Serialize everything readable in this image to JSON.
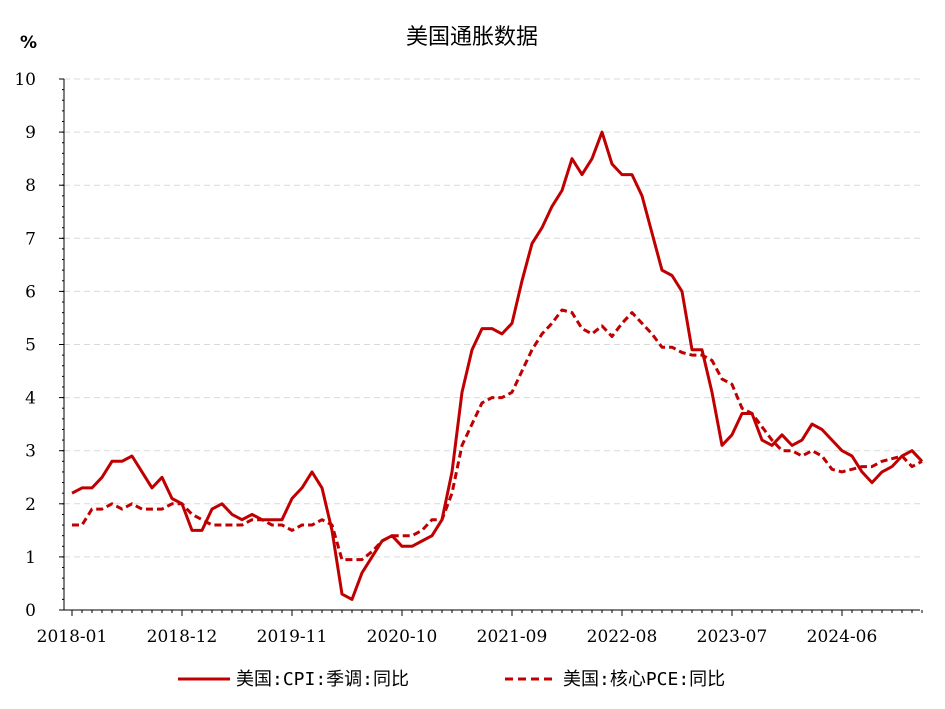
{
  "chart_data": {
    "type": "line",
    "title": "美国通胀数据",
    "ylabel": "%",
    "xlabel": "",
    "ylim": [
      0,
      10
    ],
    "yticks": [
      "0",
      "1",
      "2",
      "3",
      "4",
      "5",
      "6",
      "7",
      "8",
      "9",
      "10"
    ],
    "xticks": [
      "2018-01",
      "2018-12",
      "2019-11",
      "2020-10",
      "2021-09",
      "2022-08",
      "2023-07",
      "2024-06"
    ],
    "x_start": "2018-01",
    "grid": true,
    "legend_position": "bottom",
    "colors": {
      "series": "#c00000"
    },
    "series": [
      {
        "name": "美国:CPI:季调:同比",
        "style": "solid",
        "values": [
          2.2,
          2.3,
          2.3,
          2.5,
          2.8,
          2.8,
          2.9,
          2.6,
          2.3,
          2.5,
          2.1,
          2.0,
          1.5,
          1.5,
          1.9,
          2.0,
          1.8,
          1.7,
          1.8,
          1.7,
          1.7,
          1.7,
          2.1,
          2.3,
          2.6,
          2.3,
          1.5,
          0.3,
          0.2,
          0.7,
          1.0,
          1.3,
          1.4,
          1.2,
          1.2,
          1.3,
          1.4,
          1.7,
          2.6,
          4.1,
          4.9,
          5.3,
          5.3,
          5.2,
          5.4,
          6.2,
          6.9,
          7.2,
          7.6,
          7.9,
          8.5,
          8.2,
          8.5,
          9.0,
          8.4,
          8.2,
          8.2,
          7.8,
          7.1,
          6.4,
          6.3,
          6.0,
          4.9,
          4.9,
          4.1,
          3.1,
          3.3,
          3.7,
          3.7,
          3.2,
          3.1,
          3.3,
          3.1,
          3.2,
          3.5,
          3.4,
          3.2,
          3.0,
          2.9,
          2.6,
          2.4,
          2.6,
          2.7,
          2.9,
          3.0,
          2.8
        ]
      },
      {
        "name": "美国:核心PCE:同比",
        "style": "dashed",
        "values": [
          1.6,
          1.6,
          1.9,
          1.9,
          2.0,
          1.9,
          2.0,
          1.9,
          1.9,
          1.9,
          2.0,
          2.0,
          1.8,
          1.7,
          1.6,
          1.6,
          1.6,
          1.6,
          1.7,
          1.7,
          1.6,
          1.6,
          1.5,
          1.6,
          1.6,
          1.7,
          1.6,
          0.95,
          0.95,
          0.95,
          1.1,
          1.3,
          1.4,
          1.4,
          1.4,
          1.5,
          1.7,
          1.7,
          2.2,
          3.1,
          3.5,
          3.9,
          4.0,
          4.0,
          4.1,
          4.5,
          4.9,
          5.2,
          5.4,
          5.65,
          5.6,
          5.3,
          5.2,
          5.35,
          5.15,
          5.4,
          5.6,
          5.4,
          5.2,
          4.95,
          4.95,
          4.85,
          4.8,
          4.8,
          4.7,
          4.35,
          4.25,
          3.8,
          3.7,
          3.45,
          3.2,
          3.0,
          3.0,
          2.9,
          3.0,
          2.9,
          2.65,
          2.6,
          2.65,
          2.7,
          2.7,
          2.8,
          2.85,
          2.9,
          2.7,
          2.8
        ]
      }
    ]
  }
}
